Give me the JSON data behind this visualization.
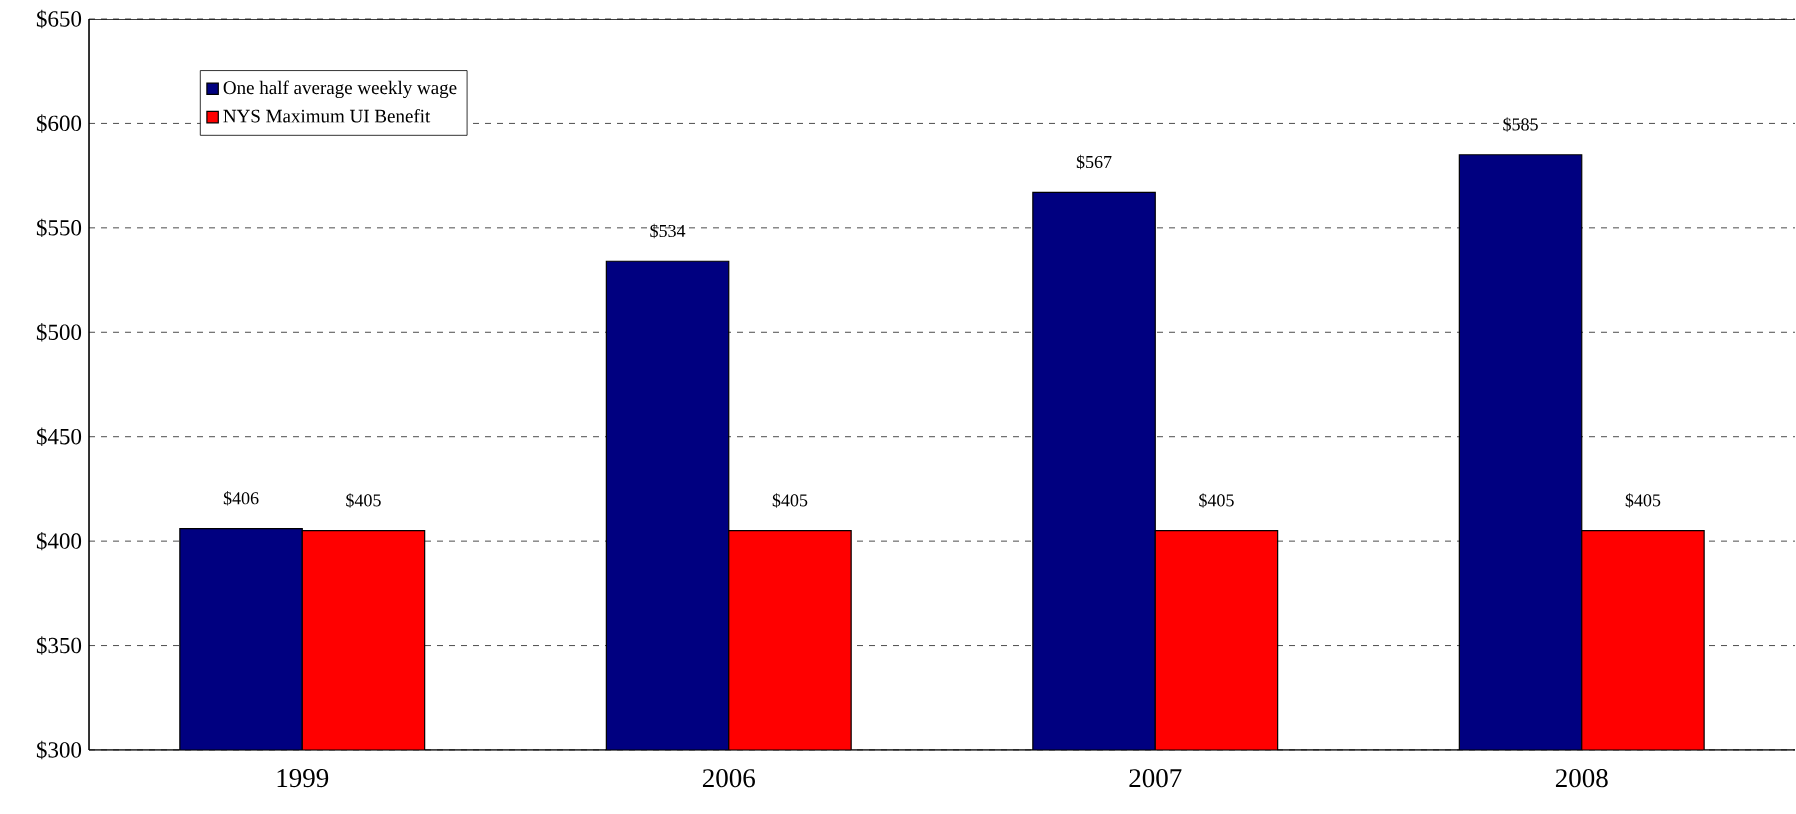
{
  "chart_data": {
    "type": "bar",
    "categories": [
      "1999",
      "2006",
      "2007",
      "2008"
    ],
    "series": [
      {
        "name": "One half average weekly wage",
        "color": "#000080",
        "values": [
          406,
          534,
          567,
          585
        ],
        "value_labels": [
          "$406",
          "$534",
          "$567",
          "$585"
        ]
      },
      {
        "name": "NYS Maximum UI Benefit",
        "color": "#ff0000",
        "values": [
          405,
          405,
          405,
          405
        ],
        "value_labels": [
          "$405",
          "$405",
          "$405",
          "$405"
        ]
      }
    ],
    "ylim": [
      300,
      650
    ],
    "yticks": [
      {
        "value": 300,
        "label": "$300"
      },
      {
        "value": 350,
        "label": "$350"
      },
      {
        "value": 400,
        "label": "$400"
      },
      {
        "value": 450,
        "label": "$450"
      },
      {
        "value": 500,
        "label": "$500"
      },
      {
        "value": 550,
        "label": "$550"
      },
      {
        "value": 600,
        "label": "$600"
      },
      {
        "value": 650,
        "label": "$650"
      }
    ],
    "grid": "y",
    "legend": "top left"
  }
}
